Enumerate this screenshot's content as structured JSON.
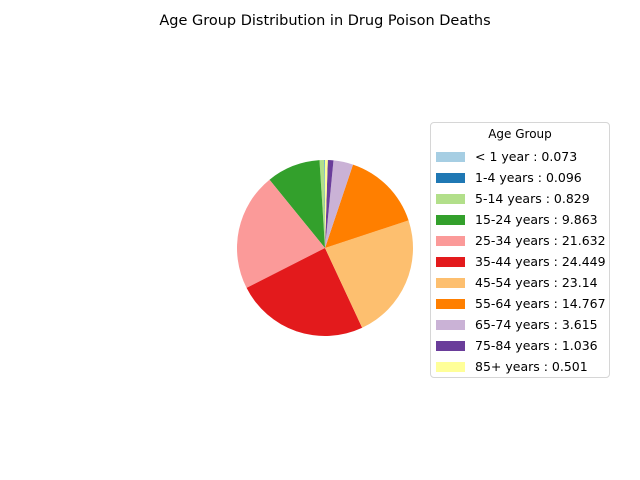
{
  "chart_data": {
    "type": "pie",
    "title": "Age Group Distribution in Drug Poison Deaths",
    "legend_title": "Age Group",
    "legend_location": "right",
    "start_angle_degrees": 90,
    "direction": "counterclockwise",
    "slices": [
      {
        "label": "< 1 year : 0.073",
        "category": "< 1 year",
        "value": 0.073,
        "color": "#a6cee3"
      },
      {
        "label": "1-4 years : 0.096",
        "category": "1-4 years",
        "value": 0.096,
        "color": "#1f78b4"
      },
      {
        "label": "5-14 years : 0.829",
        "category": "5-14 years",
        "value": 0.829,
        "color": "#b2df8a"
      },
      {
        "label": "15-24 years : 9.863",
        "category": "15-24 years",
        "value": 9.863,
        "color": "#33a02c"
      },
      {
        "label": "25-34 years : 21.632",
        "category": "25-34 years",
        "value": 21.632,
        "color": "#fb9a99"
      },
      {
        "label": "35-44 years : 24.449",
        "category": "35-44 years",
        "value": 24.449,
        "color": "#e31a1c"
      },
      {
        "label": "45-54 years : 23.14",
        "category": "45-54 years",
        "value": 23.14,
        "color": "#fdbf6f"
      },
      {
        "label": "55-64 years : 14.767",
        "category": "55-64 years",
        "value": 14.767,
        "color": "#ff7f00"
      },
      {
        "label": "65-74 years : 3.615",
        "category": "65-74 years",
        "value": 3.615,
        "color": "#cab2d6"
      },
      {
        "label": "75-84 years : 1.036",
        "category": "75-84 years",
        "value": 1.036,
        "color": "#6a3d9a"
      },
      {
        "label": "85+ years : 0.501",
        "category": "85+ years",
        "value": 0.501,
        "color": "#ffff99"
      }
    ]
  }
}
